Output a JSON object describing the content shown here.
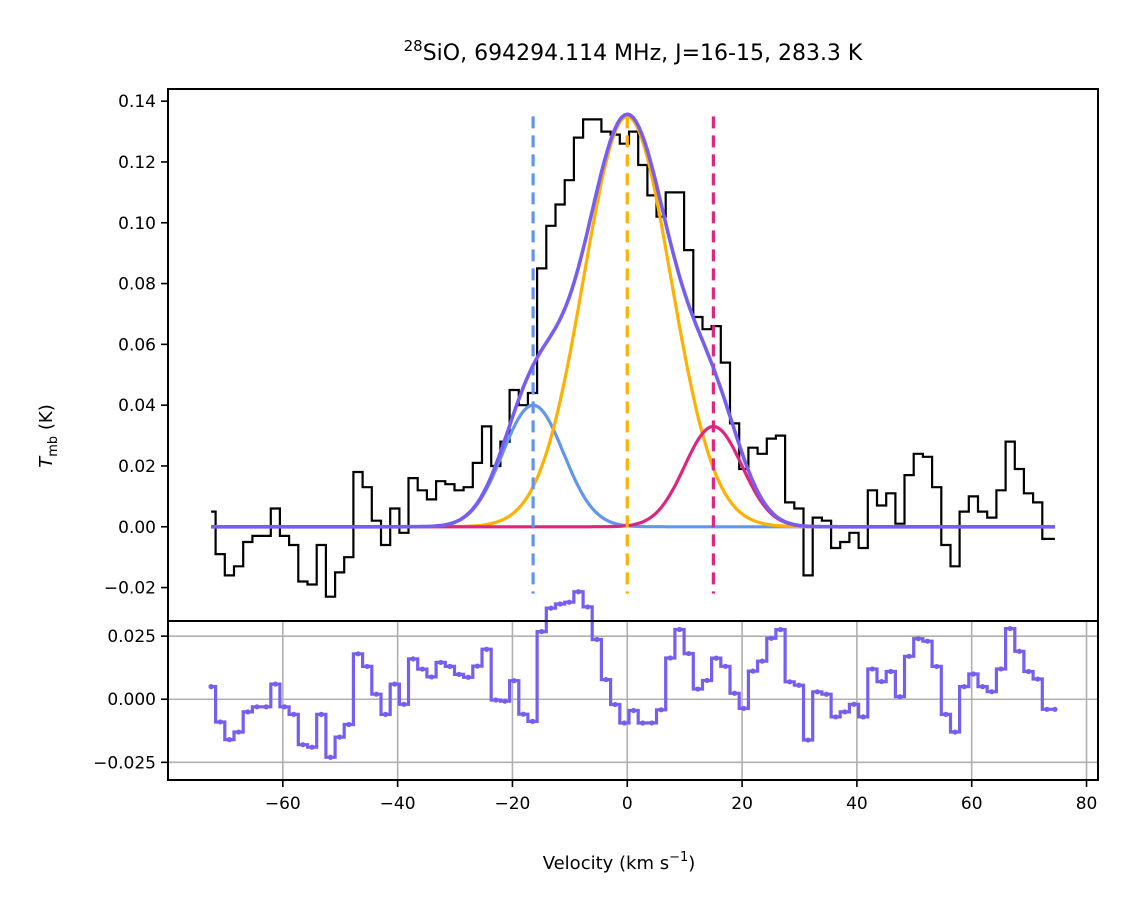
{
  "chart_data": {
    "type": "line",
    "title": {
      "isotope_sup": "28",
      "main": "SiO, 694294.114 MHz, J=16-15, 283.3 K"
    },
    "xlabel": {
      "prefix": "Velocity (km s",
      "sup": "−1",
      "suffix": ")"
    },
    "ylabel_top": {
      "symbol": "T",
      "sub": "mb",
      "unit": " (K)"
    },
    "xlim": [
      -80,
      82
    ],
    "top_panel": {
      "ylim": [
        -0.031,
        0.144
      ],
      "yticks": [
        -0.02,
        0.0,
        0.02,
        0.04,
        0.06,
        0.08,
        0.1,
        0.12,
        0.14
      ],
      "ytick_labels": [
        "−0.02",
        "0.00",
        "0.02",
        "0.04",
        "0.06",
        "0.08",
        "0.10",
        "0.12",
        "0.14"
      ]
    },
    "bottom_panel": {
      "ylim": [
        -0.032,
        0.031
      ],
      "yticks": [
        -0.025,
        0.0,
        0.025
      ],
      "ytick_labels": [
        "−0.025",
        "0.000",
        "0.025"
      ]
    },
    "xticks": [
      -60,
      -40,
      -20,
      0,
      20,
      40,
      60,
      80
    ],
    "xtick_labels": [
      "−60",
      "−40",
      "−20",
      "0",
      "20",
      "40",
      "60",
      "80"
    ],
    "channel_width": 1.6,
    "spectrum": {
      "name": "observed",
      "color": "#000000",
      "x": [
        -72.5,
        -70.9,
        -69.3,
        -67.7,
        -66.1,
        -64.5,
        -62.9,
        -61.3,
        -59.7,
        -58.1,
        -56.5,
        -54.9,
        -53.3,
        -51.7,
        -50.1,
        -48.5,
        -46.9,
        -45.3,
        -43.7,
        -42.1,
        -40.5,
        -38.9,
        -37.3,
        -35.7,
        -34.1,
        -32.5,
        -30.9,
        -29.3,
        -27.7,
        -26.1,
        -24.5,
        -22.9,
        -21.3,
        -19.7,
        -18.1,
        -16.5,
        -14.9,
        -13.3,
        -11.7,
        -10.1,
        -8.5,
        -6.9,
        -5.3,
        -3.7,
        -2.1,
        -0.5,
        1.1,
        2.7,
        4.3,
        5.9,
        7.5,
        9.1,
        10.7,
        12.3,
        13.9,
        15.5,
        17.1,
        18.7,
        20.3,
        21.9,
        23.5,
        25.1,
        26.7,
        28.3,
        29.9,
        31.5,
        33.1,
        34.7,
        36.3,
        37.9,
        39.5,
        41.1,
        42.7,
        44.3,
        45.9,
        47.5,
        49.1,
        50.7,
        52.3,
        53.9,
        55.5,
        57.1,
        58.7,
        60.3,
        61.9,
        63.5,
        65.1,
        66.7,
        68.3,
        69.9,
        71.5,
        73.1,
        74.5
      ],
      "y": [
        0.005,
        -0.009,
        -0.016,
        -0.013,
        -0.005,
        -0.003,
        -0.003,
        0.006,
        -0.003,
        -0.006,
        -0.018,
        -0.019,
        -0.006,
        -0.023,
        -0.015,
        -0.01,
        0.018,
        0.013,
        0.002,
        -0.006,
        0.006,
        -0.002,
        0.016,
        0.012,
        0.009,
        0.015,
        0.014,
        0.012,
        0.013,
        0.021,
        0.033,
        0.02,
        0.028,
        0.045,
        0.04,
        0.044,
        0.085,
        0.099,
        0.106,
        0.114,
        0.128,
        0.134,
        0.134,
        0.13,
        0.129,
        0.126,
        0.13,
        0.119,
        0.109,
        0.102,
        0.11,
        0.11,
        0.091,
        0.069,
        0.065,
        0.066,
        0.054,
        0.034,
        0.019,
        0.026,
        0.024,
        0.029,
        0.03,
        0.008,
        0.006,
        -0.016,
        0.003,
        0.002,
        -0.007,
        -0.005,
        -0.002,
        -0.007,
        0.012,
        0.007,
        0.011,
        0.001,
        0.017,
        0.024,
        0.023,
        0.013,
        -0.006,
        -0.013,
        0.005,
        0.01,
        0.005,
        0.003,
        0.012,
        0.028,
        0.019,
        0.011,
        0.008,
        -0.004,
        -0.004
      ]
    },
    "components": [
      {
        "name": "component-blue",
        "color": "#6495ed",
        "amp": 0.04,
        "center": -16.4,
        "sigma": 5.3
      },
      {
        "name": "component-orange",
        "color": "#ffb000",
        "amp": 0.135,
        "center": 0.0,
        "sigma": 7.6
      },
      {
        "name": "component-magenta",
        "color": "#dc267f",
        "amp": 0.033,
        "center": 15.0,
        "sigma": 5.0
      }
    ],
    "total_fit": {
      "name": "total-fit",
      "color": "#785ef0"
    },
    "residual_color": "#785ef0"
  }
}
